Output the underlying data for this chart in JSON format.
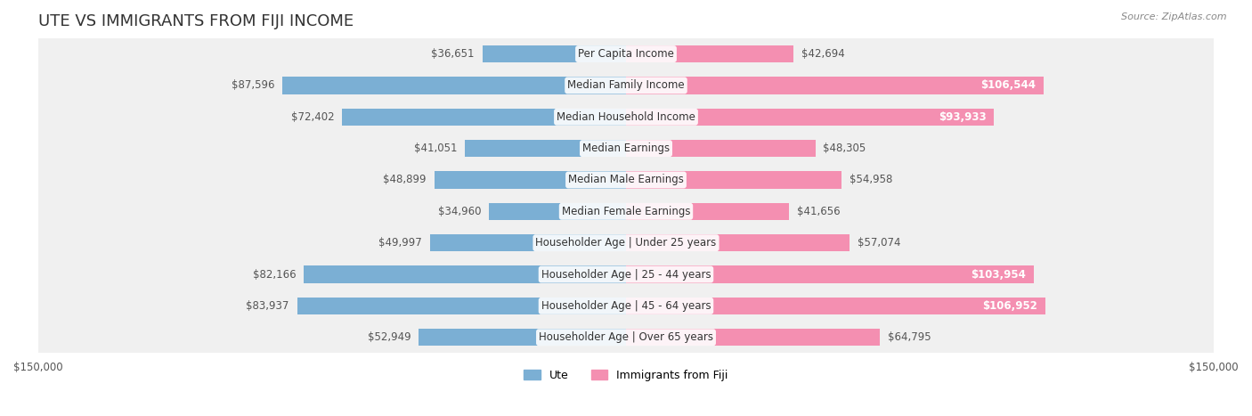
{
  "title": "UTE VS IMMIGRANTS FROM FIJI INCOME",
  "source": "Source: ZipAtlas.com",
  "categories": [
    "Per Capita Income",
    "Median Family Income",
    "Median Household Income",
    "Median Earnings",
    "Median Male Earnings",
    "Median Female Earnings",
    "Householder Age | Under 25 years",
    "Householder Age | 25 - 44 years",
    "Householder Age | 45 - 64 years",
    "Householder Age | Over 65 years"
  ],
  "ute_values": [
    36651,
    87596,
    72402,
    41051,
    48899,
    34960,
    49997,
    82166,
    83937,
    52949
  ],
  "fiji_values": [
    42694,
    106544,
    93933,
    48305,
    54958,
    41656,
    57074,
    103954,
    106952,
    64795
  ],
  "ute_color": "#7bafd4",
  "fiji_color": "#f48fb1",
  "ute_color_dark": "#4a86c8",
  "fiji_color_dark": "#f06292",
  "background_row_color": "#f0f0f0",
  "max_value": 150000,
  "bar_height": 0.55,
  "title_fontsize": 13,
  "label_fontsize": 8.5,
  "category_fontsize": 8.5,
  "legend_fontsize": 9,
  "source_fontsize": 8
}
